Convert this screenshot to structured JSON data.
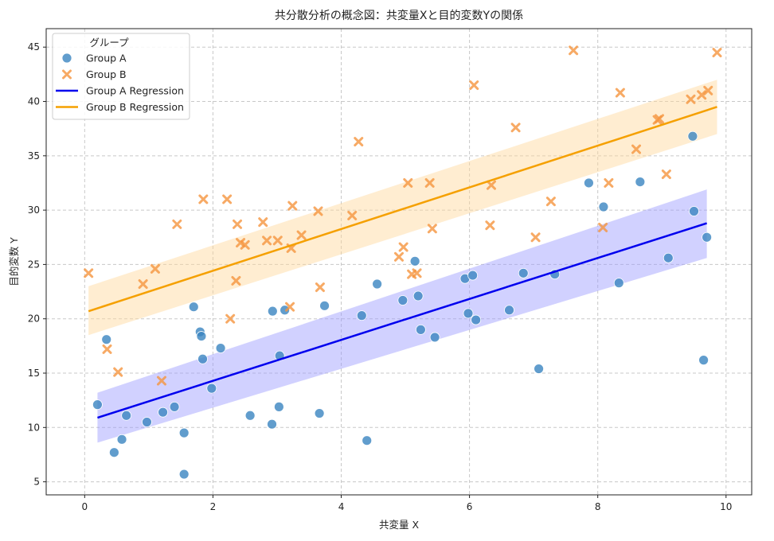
{
  "chart_data": {
    "type": "scatter",
    "title": "共分散分析の概念図：共変量Xと目的変数Yの関係",
    "xlabel": "共変量 X",
    "ylabel": "目的変数 Y",
    "xlim": [
      -0.6,
      10.4
    ],
    "ylim": [
      3.8,
      46.7
    ],
    "xticks": [
      0,
      2,
      4,
      6,
      8,
      10
    ],
    "yticks": [
      5,
      10,
      15,
      20,
      25,
      30,
      35,
      40,
      45
    ],
    "grid": true,
    "legend": {
      "title": "グループ",
      "placement": "top-left",
      "entries": [
        "Group A",
        "Group B",
        "Group A Regression",
        "Group B Regression"
      ]
    },
    "colors": {
      "group_a": "#3a84c0",
      "group_b": "#f5953f",
      "reg_a": "#0000ee",
      "reg_b": "#f5a000",
      "band_a": "#9999ff",
      "band_b": "#ffd699"
    },
    "series": [
      {
        "name": "Group A",
        "marker": "circle",
        "points": [
          [
            0.2,
            12.1
          ],
          [
            0.34,
            18.1
          ],
          [
            0.46,
            7.7
          ],
          [
            0.58,
            8.9
          ],
          [
            0.65,
            11.1
          ],
          [
            0.97,
            10.5
          ],
          [
            1.22,
            11.4
          ],
          [
            1.4,
            11.9
          ],
          [
            1.55,
            9.5
          ],
          [
            1.55,
            5.7
          ],
          [
            1.7,
            21.1
          ],
          [
            1.8,
            18.8
          ],
          [
            1.82,
            18.4
          ],
          [
            1.84,
            16.3
          ],
          [
            1.98,
            13.6
          ],
          [
            2.12,
            17.3
          ],
          [
            2.58,
            11.1
          ],
          [
            2.92,
            10.3
          ],
          [
            2.93,
            20.7
          ],
          [
            3.03,
            11.9
          ],
          [
            3.04,
            16.6
          ],
          [
            3.12,
            20.8
          ],
          [
            3.66,
            11.3
          ],
          [
            3.74,
            21.2
          ],
          [
            4.32,
            20.3
          ],
          [
            4.4,
            8.8
          ],
          [
            4.56,
            23.2
          ],
          [
            4.96,
            21.7
          ],
          [
            5.15,
            25.3
          ],
          [
            5.2,
            22.1
          ],
          [
            5.24,
            19.0
          ],
          [
            5.46,
            18.3
          ],
          [
            5.93,
            23.7
          ],
          [
            5.98,
            20.5
          ],
          [
            6.05,
            24.0
          ],
          [
            6.1,
            19.9
          ],
          [
            6.62,
            20.8
          ],
          [
            6.84,
            24.2
          ],
          [
            7.08,
            15.4
          ],
          [
            7.33,
            24.1
          ],
          [
            7.86,
            32.5
          ],
          [
            8.09,
            30.3
          ],
          [
            8.33,
            23.3
          ],
          [
            8.66,
            32.6
          ],
          [
            9.1,
            25.6
          ],
          [
            9.48,
            36.8
          ],
          [
            9.5,
            29.9
          ],
          [
            9.65,
            16.2
          ],
          [
            9.7,
            27.5
          ]
        ]
      },
      {
        "name": "Group B",
        "marker": "x",
        "points": [
          [
            0.06,
            24.2
          ],
          [
            0.35,
            17.2
          ],
          [
            0.52,
            15.1
          ],
          [
            0.91,
            23.2
          ],
          [
            1.1,
            24.6
          ],
          [
            1.2,
            14.3
          ],
          [
            1.44,
            28.7
          ],
          [
            1.85,
            31.0
          ],
          [
            2.22,
            31.0
          ],
          [
            2.27,
            20.0
          ],
          [
            2.36,
            23.5
          ],
          [
            2.38,
            28.7
          ],
          [
            2.43,
            27.0
          ],
          [
            2.5,
            26.8
          ],
          [
            2.78,
            28.9
          ],
          [
            2.84,
            27.2
          ],
          [
            3.01,
            27.2
          ],
          [
            3.2,
            21.1
          ],
          [
            3.22,
            26.5
          ],
          [
            3.24,
            30.4
          ],
          [
            3.38,
            27.7
          ],
          [
            3.64,
            29.9
          ],
          [
            3.67,
            22.9
          ],
          [
            4.17,
            29.5
          ],
          [
            4.27,
            36.3
          ],
          [
            4.9,
            25.7
          ],
          [
            4.97,
            26.6
          ],
          [
            5.04,
            32.5
          ],
          [
            5.1,
            24.1
          ],
          [
            5.18,
            24.2
          ],
          [
            5.38,
            32.5
          ],
          [
            5.42,
            28.3
          ],
          [
            6.07,
            41.5
          ],
          [
            6.32,
            28.6
          ],
          [
            6.34,
            32.3
          ],
          [
            6.72,
            37.6
          ],
          [
            7.03,
            27.5
          ],
          [
            7.27,
            30.8
          ],
          [
            7.62,
            44.7
          ],
          [
            8.08,
            28.4
          ],
          [
            8.17,
            32.5
          ],
          [
            8.35,
            40.8
          ],
          [
            8.6,
            35.6
          ],
          [
            8.93,
            38.3
          ],
          [
            8.96,
            38.4
          ],
          [
            9.07,
            33.3
          ],
          [
            9.45,
            40.2
          ],
          [
            9.62,
            40.6
          ],
          [
            9.72,
            41.0
          ],
          [
            9.86,
            44.5
          ]
        ]
      },
      {
        "name": "Group A Regression",
        "type": "line",
        "x": [
          0.2,
          9.7
        ],
        "y": [
          10.9,
          28.8
        ],
        "band_lower": [
          8.6,
          25.6
        ],
        "band_upper": [
          13.2,
          31.9
        ]
      },
      {
        "name": "Group B Regression",
        "type": "line",
        "x": [
          0.06,
          9.86
        ],
        "y": [
          20.7,
          39.5
        ],
        "band_lower": [
          18.5,
          37.0
        ],
        "band_upper": [
          23.0,
          42.0
        ]
      }
    ]
  }
}
